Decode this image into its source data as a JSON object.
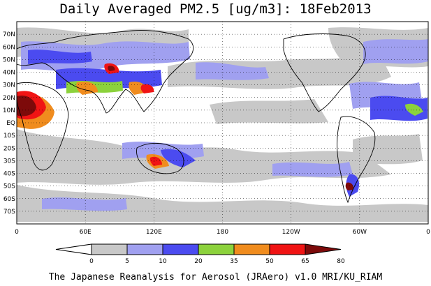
{
  "title": "Daily Averaged PM2.5 [ug/m3]: 18Feb2013",
  "credit": "The Japanese Reanalysis for Aerosol (JRAero) v1.0 MRI/KU_RIAM",
  "map": {
    "lat_labels": [
      "70N",
      "60N",
      "50N",
      "40N",
      "30N",
      "20N",
      "10N",
      "EQ",
      "10S",
      "20S",
      "30S",
      "40S",
      "50S",
      "60S",
      "70S"
    ],
    "lon_labels": [
      "0",
      "60E",
      "120E",
      "180",
      "120W",
      "60W",
      "0"
    ]
  },
  "colorbar": {
    "unit": "ug/m3",
    "thresholds": [
      "0",
      "5",
      "10",
      "20",
      "35",
      "50",
      "65",
      "80"
    ],
    "colors": [
      "#ffffff",
      "#c8c8c8",
      "#a0a0f0",
      "#4b4bf0",
      "#8cd23c",
      "#f08c1e",
      "#f01414",
      "#7d0a0a"
    ]
  },
  "colors": {
    "bg": "#c8c8c8",
    "land_outline": "#000000"
  }
}
